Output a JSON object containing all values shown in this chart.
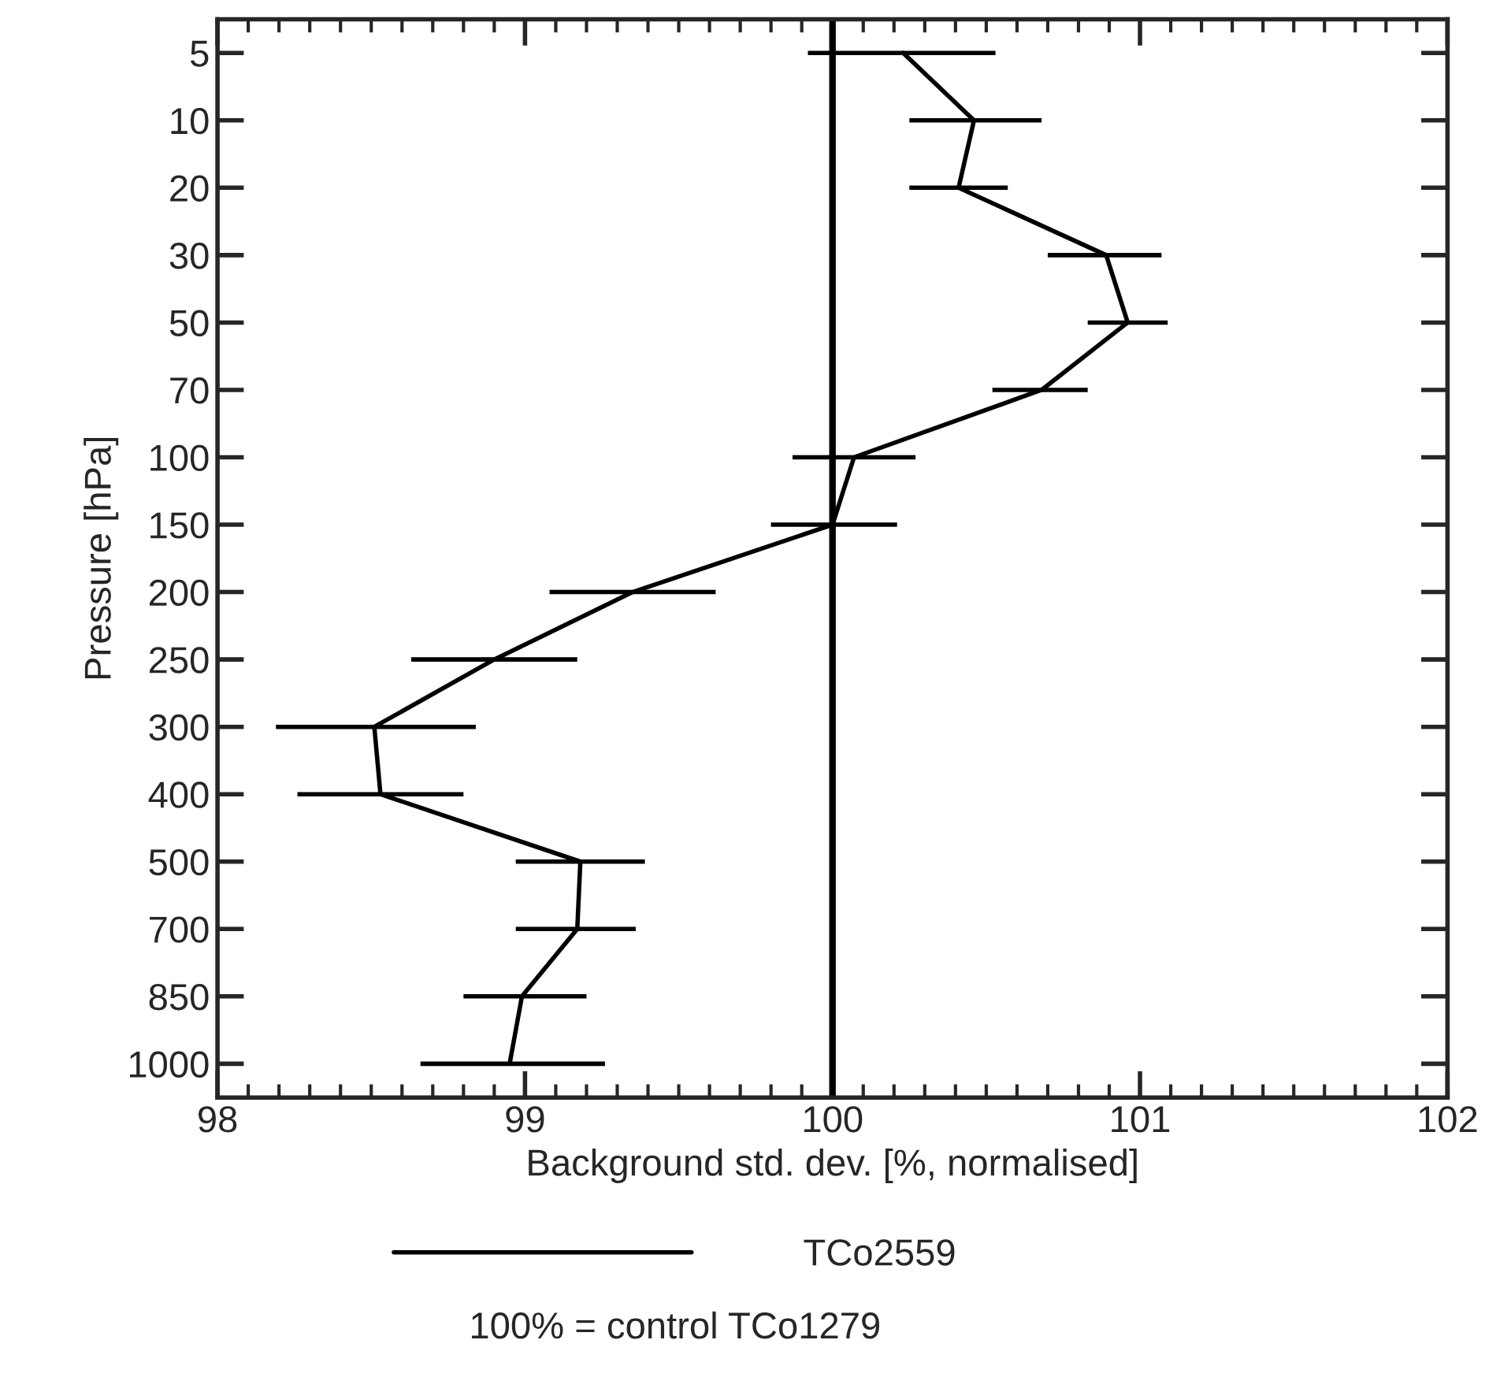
{
  "chart_data": {
    "type": "line",
    "orientation": "horizontal",
    "xlabel": "Background std. dev. [%, normalised]",
    "ylabel": "Pressure [hPa]",
    "categories": [
      "5",
      "10",
      "20",
      "30",
      "50",
      "70",
      "100",
      "150",
      "200",
      "250",
      "300",
      "400",
      "500",
      "700",
      "850",
      "1000"
    ],
    "series": [
      {
        "name": "TCo2559",
        "color": "#000000",
        "values": [
          100.23,
          100.46,
          100.41,
          100.89,
          100.96,
          100.68,
          100.07,
          100.0,
          99.35,
          98.9,
          98.51,
          98.53,
          99.18,
          99.17,
          98.99,
          98.95
        ],
        "errors": [
          [
            99.92,
            100.53
          ],
          [
            100.25,
            100.68
          ],
          [
            100.25,
            100.57
          ],
          [
            100.7,
            101.07
          ],
          [
            100.83,
            101.09
          ],
          [
            100.52,
            100.83
          ],
          [
            99.87,
            100.27
          ],
          [
            99.8,
            100.21
          ],
          [
            99.08,
            99.62
          ],
          [
            98.63,
            99.17
          ],
          [
            98.19,
            98.84
          ],
          [
            98.26,
            98.8
          ],
          [
            98.97,
            99.39
          ],
          [
            98.97,
            99.36
          ],
          [
            98.8,
            99.2
          ],
          [
            98.66,
            99.26
          ]
        ]
      }
    ],
    "xlim": [
      98,
      102
    ],
    "xticks": [
      98,
      99,
      100,
      101,
      102
    ],
    "ref_lines": [
      {
        "axis": "x",
        "value": 100,
        "color": "#000000"
      }
    ],
    "legend": "bottom",
    "marker": "none",
    "line_style": "solid",
    "grid": false,
    "annotations": [
      "100% = control TCo1279"
    ]
  }
}
